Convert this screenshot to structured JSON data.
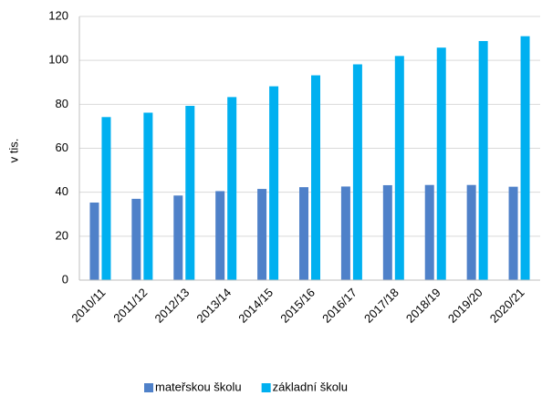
{
  "chart_data": {
    "type": "bar",
    "y_label": "v tis.",
    "categories": [
      "2010/11",
      "2011/12",
      "2012/13",
      "2013/14",
      "2014/15",
      "2015/16",
      "2016/17",
      "2017/18",
      "2018/19",
      "2019/20",
      "2020/21"
    ],
    "series": [
      {
        "name": "mateřskou školu",
        "color": "#4f81c9",
        "values": [
          35.3,
          37,
          38.5,
          40.5,
          41.5,
          42.3,
          42.6,
          43.2,
          43.3,
          43.3,
          42.5
        ]
      },
      {
        "name": "základní školu",
        "color": "#00b0f0",
        "values": [
          74.2,
          76.2,
          79.3,
          83.3,
          88.2,
          93.2,
          98.2,
          102,
          105.8,
          108.8,
          111
        ]
      }
    ],
    "ylim": [
      0,
      120
    ],
    "yticks": [
      0,
      20,
      40,
      60,
      80,
      100,
      120
    ],
    "grid": true
  }
}
